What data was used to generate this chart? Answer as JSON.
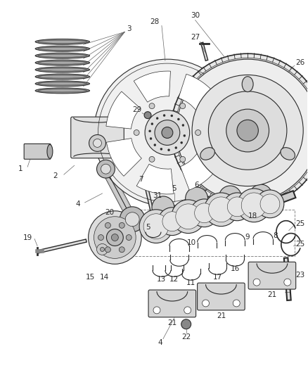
{
  "bg_color": "#ffffff",
  "line_color": "#2a2a2a",
  "fig_width": 4.38,
  "fig_height": 5.33,
  "dpi": 100,
  "lw_main": 0.8,
  "lw_thin": 0.5,
  "lw_thick": 1.2,
  "gray_light": "#cccccc",
  "gray_med": "#999999",
  "gray_dark": "#555555",
  "label_fontsize": 7.5
}
